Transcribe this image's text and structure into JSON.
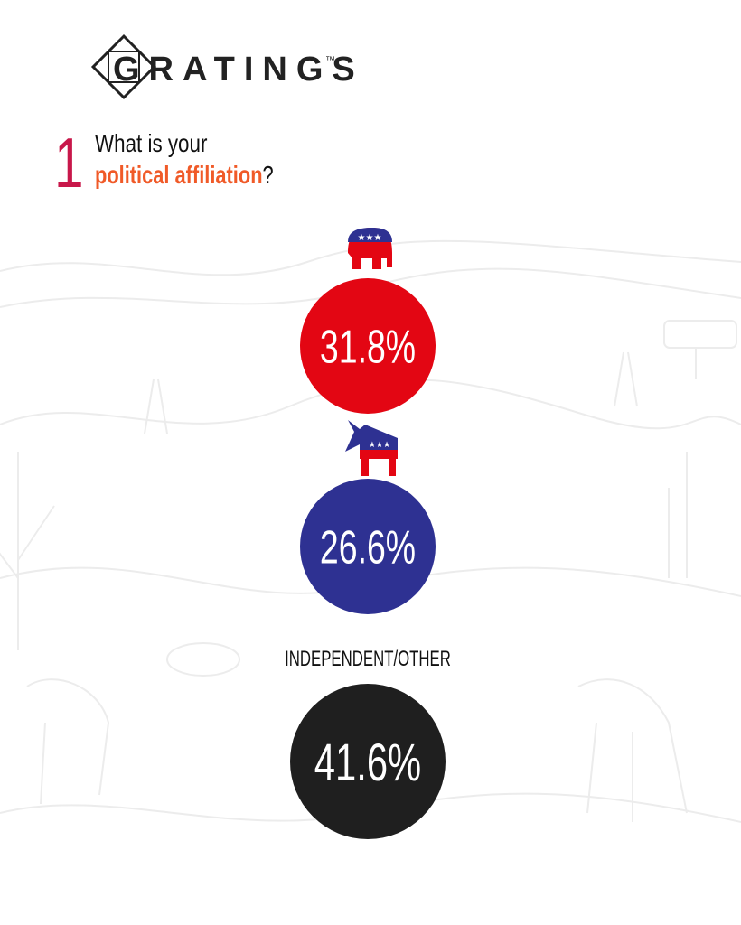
{
  "header": {
    "logo": "GRATINGS",
    "trademark": "™"
  },
  "question": {
    "number": "1",
    "line1": "What is your",
    "highlight": "political affiliation",
    "end": "?"
  },
  "results": [
    {
      "value": "31.8%"
    },
    {
      "value": "26.6%"
    },
    {
      "label": "INDEPENDENT/OTHER",
      "value": "41.6%"
    }
  ]
}
